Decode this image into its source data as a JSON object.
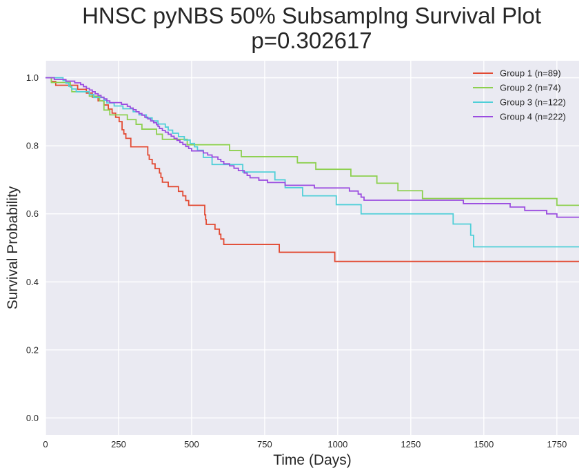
{
  "chart_data": {
    "type": "line",
    "title_lines": [
      "HNSC pyNBS 50% Subsamplng Survival Plot",
      "p=0.302617"
    ],
    "xlabel": "Time (Days)",
    "ylabel": "Survival Probability",
    "xlim": [
      0,
      1826
    ],
    "ylim": [
      -0.05,
      1.05
    ],
    "xticks": [
      0,
      250,
      500,
      750,
      1000,
      1250,
      1500,
      1750
    ],
    "yticks": [
      0.0,
      0.2,
      0.4,
      0.6,
      0.8,
      1.0
    ],
    "xtick_labels": [
      "0",
      "250",
      "500",
      "750",
      "1000",
      "1250",
      "1500",
      "1750"
    ],
    "ytick_labels": [
      "0.0",
      "0.2",
      "0.4",
      "0.6",
      "0.8",
      "1.0"
    ],
    "grid": true,
    "legend_position": "top-right",
    "background_color": "#eaeaf2",
    "series": [
      {
        "name": "Group 1 (n=89)",
        "color": "#e24a33",
        "steps": [
          [
            0,
            1.0
          ],
          [
            20,
            0.989
          ],
          [
            35,
            0.978
          ],
          [
            60,
            0.978
          ],
          [
            95,
            0.978
          ],
          [
            110,
            0.966
          ],
          [
            140,
            0.955
          ],
          [
            160,
            0.943
          ],
          [
            180,
            0.932
          ],
          [
            200,
            0.92
          ],
          [
            215,
            0.908
          ],
          [
            228,
            0.896
          ],
          [
            240,
            0.884
          ],
          [
            252,
            0.871
          ],
          [
            262,
            0.847
          ],
          [
            268,
            0.835
          ],
          [
            275,
            0.822
          ],
          [
            292,
            0.797
          ],
          [
            350,
            0.773
          ],
          [
            355,
            0.76
          ],
          [
            365,
            0.747
          ],
          [
            375,
            0.733
          ],
          [
            390,
            0.72
          ],
          [
            395,
            0.707
          ],
          [
            400,
            0.693
          ],
          [
            420,
            0.68
          ],
          [
            455,
            0.666
          ],
          [
            470,
            0.653
          ],
          [
            480,
            0.639
          ],
          [
            490,
            0.625
          ],
          [
            545,
            0.597
          ],
          [
            548,
            0.583
          ],
          [
            550,
            0.569
          ],
          [
            580,
            0.555
          ],
          [
            595,
            0.54
          ],
          [
            600,
            0.526
          ],
          [
            610,
            0.51
          ],
          [
            800,
            0.487
          ],
          [
            990,
            0.46
          ],
          [
            1826,
            0.46
          ]
        ]
      },
      {
        "name": "Group 2 (n=74)",
        "color": "#8dd04f",
        "steps": [
          [
            0,
            1.0
          ],
          [
            20,
            0.986
          ],
          [
            85,
            0.973
          ],
          [
            90,
            0.959
          ],
          [
            150,
            0.946
          ],
          [
            185,
            0.932
          ],
          [
            200,
            0.905
          ],
          [
            220,
            0.891
          ],
          [
            280,
            0.877
          ],
          [
            310,
            0.863
          ],
          [
            330,
            0.849
          ],
          [
            380,
            0.834
          ],
          [
            400,
            0.819
          ],
          [
            485,
            0.803
          ],
          [
            630,
            0.786
          ],
          [
            670,
            0.768
          ],
          [
            862,
            0.75
          ],
          [
            925,
            0.731
          ],
          [
            1045,
            0.711
          ],
          [
            1134,
            0.69
          ],
          [
            1206,
            0.668
          ],
          [
            1290,
            0.645
          ],
          [
            1750,
            0.625
          ],
          [
            1826,
            0.625
          ]
        ]
      },
      {
        "name": "Group 3 (n=122)",
        "color": "#4fcfd8",
        "steps": [
          [
            0,
            1.0
          ],
          [
            60,
            0.992
          ],
          [
            70,
            0.984
          ],
          [
            80,
            0.975
          ],
          [
            90,
            0.967
          ],
          [
            105,
            0.959
          ],
          [
            150,
            0.951
          ],
          [
            165,
            0.942
          ],
          [
            200,
            0.934
          ],
          [
            210,
            0.926
          ],
          [
            235,
            0.917
          ],
          [
            265,
            0.909
          ],
          [
            300,
            0.9
          ],
          [
            320,
            0.891
          ],
          [
            345,
            0.882
          ],
          [
            365,
            0.873
          ],
          [
            385,
            0.864
          ],
          [
            410,
            0.855
          ],
          [
            420,
            0.846
          ],
          [
            435,
            0.837
          ],
          [
            455,
            0.827
          ],
          [
            475,
            0.817
          ],
          [
            495,
            0.807
          ],
          [
            510,
            0.797
          ],
          [
            520,
            0.787
          ],
          [
            540,
            0.766
          ],
          [
            570,
            0.745
          ],
          [
            675,
            0.723
          ],
          [
            785,
            0.7
          ],
          [
            820,
            0.677
          ],
          [
            880,
            0.653
          ],
          [
            995,
            0.627
          ],
          [
            1080,
            0.6
          ],
          [
            1395,
            0.57
          ],
          [
            1455,
            0.537
          ],
          [
            1465,
            0.503
          ],
          [
            1826,
            0.503
          ]
        ]
      },
      {
        "name": "Group 4 (n=222)",
        "color": "#9b4ce0",
        "steps": [
          [
            0,
            1.0
          ],
          [
            30,
            0.995
          ],
          [
            70,
            0.99
          ],
          [
            100,
            0.985
          ],
          [
            120,
            0.98
          ],
          [
            130,
            0.974
          ],
          [
            140,
            0.969
          ],
          [
            150,
            0.964
          ],
          [
            160,
            0.959
          ],
          [
            170,
            0.953
          ],
          [
            180,
            0.948
          ],
          [
            190,
            0.943
          ],
          [
            200,
            0.938
          ],
          [
            210,
            0.932
          ],
          [
            220,
            0.927
          ],
          [
            260,
            0.922
          ],
          [
            280,
            0.916
          ],
          [
            290,
            0.911
          ],
          [
            300,
            0.906
          ],
          [
            310,
            0.9
          ],
          [
            320,
            0.895
          ],
          [
            330,
            0.89
          ],
          [
            340,
            0.884
          ],
          [
            350,
            0.879
          ],
          [
            360,
            0.873
          ],
          [
            370,
            0.868
          ],
          [
            380,
            0.862
          ],
          [
            385,
            0.857
          ],
          [
            390,
            0.851
          ],
          [
            400,
            0.845
          ],
          [
            410,
            0.84
          ],
          [
            420,
            0.834
          ],
          [
            430,
            0.828
          ],
          [
            440,
            0.822
          ],
          [
            450,
            0.816
          ],
          [
            460,
            0.81
          ],
          [
            470,
            0.804
          ],
          [
            480,
            0.798
          ],
          [
            490,
            0.792
          ],
          [
            500,
            0.785
          ],
          [
            540,
            0.779
          ],
          [
            555,
            0.773
          ],
          [
            570,
            0.767
          ],
          [
            590,
            0.76
          ],
          [
            600,
            0.754
          ],
          [
            610,
            0.747
          ],
          [
            630,
            0.741
          ],
          [
            645,
            0.734
          ],
          [
            660,
            0.727
          ],
          [
            680,
            0.72
          ],
          [
            690,
            0.713
          ],
          [
            700,
            0.706
          ],
          [
            730,
            0.699
          ],
          [
            760,
            0.692
          ],
          [
            820,
            0.684
          ],
          [
            920,
            0.676
          ],
          [
            1040,
            0.667
          ],
          [
            1070,
            0.658
          ],
          [
            1080,
            0.649
          ],
          [
            1090,
            0.64
          ],
          [
            1430,
            0.63
          ],
          [
            1590,
            0.62
          ],
          [
            1640,
            0.61
          ],
          [
            1715,
            0.6
          ],
          [
            1750,
            0.59
          ],
          [
            1826,
            0.59
          ]
        ]
      }
    ]
  }
}
